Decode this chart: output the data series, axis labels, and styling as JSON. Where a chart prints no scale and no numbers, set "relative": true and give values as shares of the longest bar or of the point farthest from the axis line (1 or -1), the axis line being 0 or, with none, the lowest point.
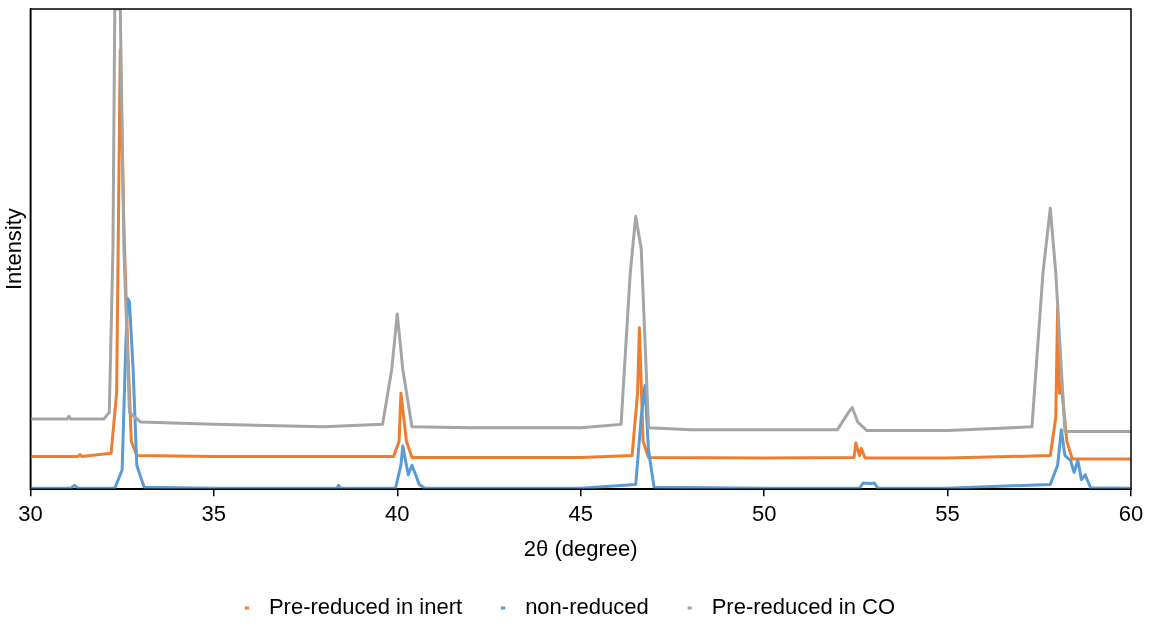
{
  "chart_data": {
    "type": "line",
    "xlabel": "2θ (degree)",
    "ylabel": "Intensity",
    "relative": true,
    "xlim": [
      30,
      60
    ],
    "xticks": [
      30,
      35,
      40,
      45,
      50,
      55,
      60
    ],
    "legend": "bottom",
    "grid": false,
    "marker": "none",
    "line_style": "solid",
    "series": [
      {
        "name": "Pre-reduced in inert",
        "color": "#ed7d31",
        "x": [
          30,
          31.3,
          31.35,
          31.4,
          32.2,
          32.35,
          32.45,
          32.55,
          32.65,
          32.75,
          32.9,
          35,
          39.9,
          40.05,
          40.1,
          40.25,
          40.4,
          45,
          46.4,
          46.55,
          46.6,
          46.7,
          46.85,
          50,
          52.45,
          52.5,
          52.6,
          52.65,
          52.75,
          55,
          57.8,
          57.95,
          58.0,
          58.05,
          58.1,
          58.25,
          58.4,
          60
        ],
        "values": [
          0.068,
          0.068,
          0.072,
          0.068,
          0.075,
          0.2,
          0.915,
          0.54,
          0.3,
          0.1,
          0.07,
          0.068,
          0.068,
          0.1,
          0.2,
          0.1,
          0.066,
          0.066,
          0.07,
          0.2,
          0.336,
          0.1,
          0.066,
          0.065,
          0.066,
          0.096,
          0.07,
          0.085,
          0.065,
          0.065,
          0.07,
          0.15,
          0.38,
          0.2,
          0.22,
          0.1,
          0.063,
          0.063
        ]
      },
      {
        "name": "non-reduced",
        "color": "#5b9bd5",
        "x": [
          30,
          31.1,
          31.2,
          31.3,
          32.3,
          32.5,
          32.6,
          32.65,
          32.7,
          32.8,
          32.9,
          33.1,
          35,
          38.35,
          38.4,
          38.45,
          39.95,
          40.1,
          40.15,
          40.3,
          40.4,
          40.5,
          40.6,
          40.75,
          45,
          46.5,
          46.65,
          46.75,
          46.85,
          47.0,
          50,
          52.6,
          52.7,
          52.9,
          53.0,
          53.1,
          55,
          57.8,
          58.0,
          58.1,
          58.2,
          58.35,
          58.45,
          58.55,
          58.65,
          58.75,
          58.9,
          60
        ],
        "values": [
          0.002,
          0.002,
          0.008,
          0.002,
          0.002,
          0.04,
          0.3,
          0.397,
          0.39,
          0.25,
          0.05,
          0.004,
          0.002,
          0.002,
          0.008,
          0.002,
          0.002,
          0.05,
          0.09,
          0.03,
          0.05,
          0.03,
          0.01,
          0.002,
          0.002,
          0.01,
          0.15,
          0.216,
          0.08,
          0.004,
          0.002,
          0.002,
          0.013,
          0.012,
          0.013,
          0.002,
          0.002,
          0.01,
          0.05,
          0.124,
          0.07,
          0.06,
          0.035,
          0.06,
          0.02,
          0.03,
          0.003,
          0.002
        ]
      },
      {
        "name": "Pre-reduced in CO",
        "color": "#a5a5a5",
        "x": [
          30,
          31,
          31.05,
          31.1,
          32,
          32.15,
          32.25,
          32.3,
          32.45,
          32.55,
          32.7,
          33,
          35,
          38,
          39.6,
          39.85,
          40.0,
          40.15,
          40.4,
          42,
          45,
          46.1,
          46.35,
          46.5,
          46.65,
          46.85,
          48,
          50,
          52.0,
          52.3,
          52.4,
          52.55,
          52.8,
          55,
          57.3,
          57.6,
          57.8,
          57.95,
          58.2,
          60
        ],
        "values": [
          0.146,
          0.146,
          0.152,
          0.146,
          0.146,
          0.16,
          0.5,
          1,
          1,
          0.5,
          0.16,
          0.14,
          0.135,
          0.13,
          0.135,
          0.25,
          0.365,
          0.25,
          0.13,
          0.128,
          0.128,
          0.135,
          0.45,
          0.568,
          0.5,
          0.128,
          0.124,
          0.124,
          0.124,
          0.16,
          0.17,
          0.14,
          0.122,
          0.122,
          0.13,
          0.45,
          0.585,
          0.45,
          0.12,
          0.12
        ]
      }
    ]
  }
}
